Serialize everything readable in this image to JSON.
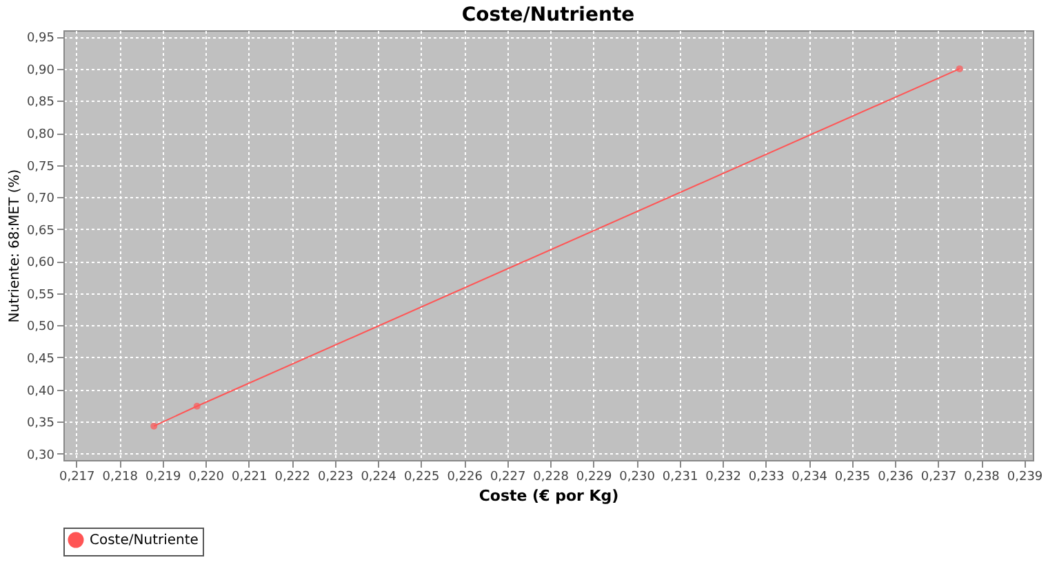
{
  "chart_data": {
    "type": "line",
    "title": "Coste/Nutriente",
    "xlabel": "Coste (€ por Kg)",
    "ylabel": "Nutriente: 68:MET (%)",
    "x": [
      0.2188,
      0.2198,
      0.2375
    ],
    "series": [
      {
        "name": "Coste/Nutriente",
        "color": "#ff5555",
        "values": [
          0.343,
          0.374,
          0.9
        ]
      }
    ],
    "xlim": [
      0.2167,
      0.2392
    ],
    "xticks": [
      {
        "value": 0.217,
        "label": "0,217"
      },
      {
        "value": 0.218,
        "label": "0,218"
      },
      {
        "value": 0.219,
        "label": "0,219"
      },
      {
        "value": 0.22,
        "label": "0,220"
      },
      {
        "value": 0.221,
        "label": "0,221"
      },
      {
        "value": 0.222,
        "label": "0,222"
      },
      {
        "value": 0.223,
        "label": "0,223"
      },
      {
        "value": 0.224,
        "label": "0,224"
      },
      {
        "value": 0.225,
        "label": "0,225"
      },
      {
        "value": 0.226,
        "label": "0,226"
      },
      {
        "value": 0.227,
        "label": "0,227"
      },
      {
        "value": 0.228,
        "label": "0,228"
      },
      {
        "value": 0.229,
        "label": "0,229"
      },
      {
        "value": 0.23,
        "label": "0,230"
      },
      {
        "value": 0.231,
        "label": "0,231"
      },
      {
        "value": 0.232,
        "label": "0,232"
      },
      {
        "value": 0.233,
        "label": "0,233"
      },
      {
        "value": 0.234,
        "label": "0,234"
      },
      {
        "value": 0.235,
        "label": "0,235"
      },
      {
        "value": 0.236,
        "label": "0,236"
      },
      {
        "value": 0.237,
        "label": "0,237"
      },
      {
        "value": 0.238,
        "label": "0,238"
      },
      {
        "value": 0.239,
        "label": "0,239"
      }
    ],
    "ylim": [
      0.29,
      0.96
    ],
    "yticks": [
      {
        "value": 0.3,
        "label": "0,30"
      },
      {
        "value": 0.35,
        "label": "0,35"
      },
      {
        "value": 0.4,
        "label": "0,40"
      },
      {
        "value": 0.45,
        "label": "0,45"
      },
      {
        "value": 0.5,
        "label": "0,50"
      },
      {
        "value": 0.55,
        "label": "0,55"
      },
      {
        "value": 0.6,
        "label": "0,60"
      },
      {
        "value": 0.65,
        "label": "0,65"
      },
      {
        "value": 0.7,
        "label": "0,70"
      },
      {
        "value": 0.75,
        "label": "0,75"
      },
      {
        "value": 0.8,
        "label": "0,80"
      },
      {
        "value": 0.85,
        "label": "0,85"
      },
      {
        "value": 0.9,
        "label": "0,90"
      },
      {
        "value": 0.95,
        "label": "0,95"
      }
    ],
    "grid": true,
    "legend": "bottom",
    "marker": "circle",
    "line_style": "solid"
  }
}
